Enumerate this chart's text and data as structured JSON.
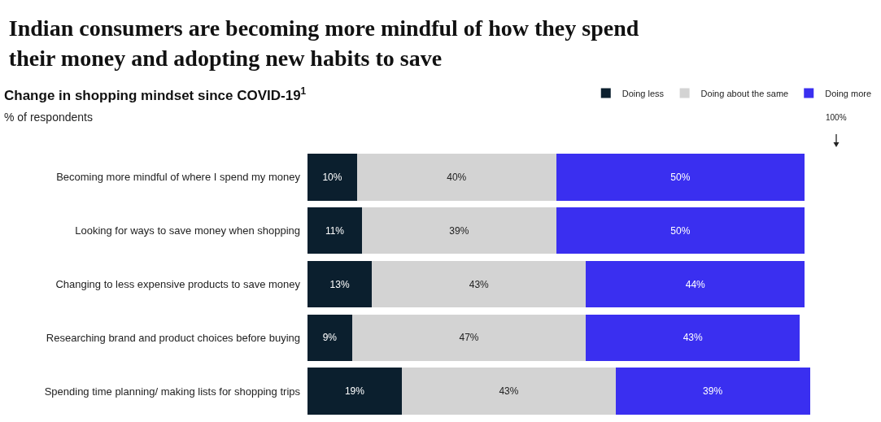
{
  "chart_data": {
    "type": "bar",
    "orientation": "horizontal",
    "stacked": true,
    "tick_labels": "y",
    "title": "Indian consumers are becoming more mindful of how they spend their money and adopting new habits to save",
    "subtitle": "Change in shopping mindset since COVID-19$^{1}$",
    "annotations": [
      "% of respondents",
      "100%"
    ],
    "categories": [
      "Becoming more mindful of where I spend my money",
      "Looking for ways to save money when shopping",
      "Changing to less expensive products to save money",
      "Researching brand and product choices before buying",
      "Spending time planning/ making lists for shopping trips"
    ],
    "series": [
      {
        "name": "Doing less",
        "color": "#0b1f2e",
        "values": [
          10,
          11,
          13,
          9,
          19
        ],
        "value_labels": [
          "10%",
          "11%",
          "13%",
          "9%",
          "19%"
        ]
      },
      {
        "name": "Doing about the same",
        "color": "#d3d3d3",
        "values": [
          40,
          39,
          43,
          47,
          43
        ],
        "value_labels": [
          "40%",
          "39%",
          "43%",
          "47%",
          "43%"
        ]
      },
      {
        "name": "Doing more",
        "color": "#3a2ff0",
        "values": [
          50,
          50,
          44,
          43,
          39
        ],
        "value_labels": [
          "50%",
          "50%",
          "44%",
          "43%",
          "39%"
        ]
      }
    ],
    "legend": "top right"
  }
}
